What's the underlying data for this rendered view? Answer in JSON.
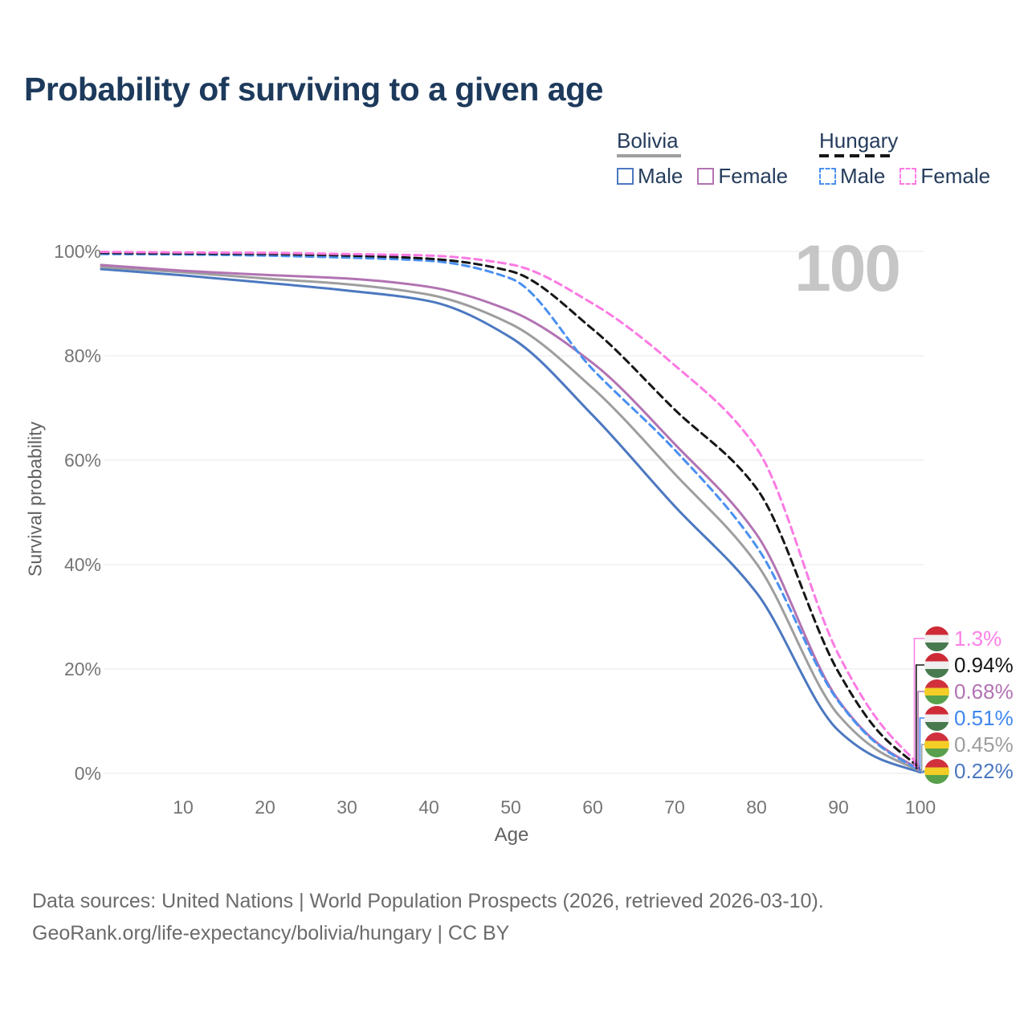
{
  "title": "Probability of surviving to a given age",
  "watermark": "100",
  "legend": {
    "groups": [
      {
        "label": "Bolivia",
        "line_style": "solid",
        "underline_color": "#9e9e9e",
        "items": [
          {
            "label": "Male",
            "color": "#4c78c0",
            "dashed": false
          },
          {
            "label": "Female",
            "color": "#b273b2",
            "dashed": false
          }
        ]
      },
      {
        "label": "Hungary",
        "line_style": "dashed",
        "underline_color": "#161616",
        "items": [
          {
            "label": "Male",
            "color": "#4a90f0",
            "dashed": true
          },
          {
            "label": "Female",
            "color": "#fb7ae3",
            "dashed": true
          }
        ]
      }
    ]
  },
  "end_labels": [
    {
      "value": "1.3%",
      "value_num": 1.3,
      "color": "#fd80e7",
      "flag": "hungary",
      "series": "Hungary Female"
    },
    {
      "value": "0.94%",
      "value_num": 0.94,
      "color": "#161616",
      "flag": "hungary",
      "series": "Hungary Combined"
    },
    {
      "value": "0.68%",
      "value_num": 0.68,
      "color": "#b273b2",
      "flag": "bolivia",
      "series": "Bolivia Female"
    },
    {
      "value": "0.51%",
      "value_num": 0.51,
      "color": "#3f86f0",
      "flag": "hungary",
      "series": "Hungary Male"
    },
    {
      "value": "0.45%",
      "value_num": 0.45,
      "color": "#9e9e9e",
      "flag": "bolivia",
      "series": "Bolivia Combined"
    },
    {
      "value": "0.22%",
      "value_num": 0.22,
      "color": "#4c78c0",
      "flag": "bolivia",
      "series": "Bolivia Male"
    }
  ],
  "flag_colors": {
    "hungary": [
      "#ce2b37",
      "#efefef",
      "#477a4e"
    ],
    "bolivia": [
      "#d0313d",
      "#f4ce27",
      "#58a04b"
    ]
  },
  "footer": {
    "line1": "Data sources: United Nations | World Population Prospects (2026, retrieved 2026-03-10).",
    "line2": "GeoRank.org/life-expectancy/bolivia/hungary | CC BY"
  },
  "chart_data": {
    "type": "line",
    "title": "Probability of surviving to a given age",
    "xlabel": "Age",
    "ylabel": "Survival probability",
    "xlim": [
      0,
      100
    ],
    "ylim": [
      0,
      100
    ],
    "grid": "horizontal",
    "gridline_color": "#e7e7e7",
    "yticks": [
      "0%",
      "20%",
      "40%",
      "60%",
      "80%",
      "100%"
    ],
    "xticks": [
      10,
      20,
      30,
      40,
      50,
      60,
      70,
      80,
      90,
      100
    ],
    "x": [
      0,
      10,
      20,
      30,
      40,
      50,
      60,
      70,
      80,
      90,
      95,
      100
    ],
    "series": [
      {
        "name": "Bolivia Male",
        "country": "Bolivia",
        "sex": "Male",
        "color": "#4c78c0",
        "dashed": false,
        "values": [
          96.6,
          95.4,
          94.0,
          92.5,
          90.5,
          83.5,
          68.6,
          51.2,
          34.6,
          8.2,
          2.8,
          0.22
        ]
      },
      {
        "name": "Bolivia Combined",
        "country": "Bolivia",
        "sex": "Both",
        "color": "#9e9e9e",
        "dashed": false,
        "values": [
          97.0,
          96.0,
          94.8,
          93.7,
          91.7,
          86.1,
          73.8,
          57.4,
          40.2,
          11.2,
          4.2,
          0.45
        ]
      },
      {
        "name": "Bolivia Female",
        "country": "Bolivia",
        "sex": "Female",
        "color": "#b273b2",
        "dashed": false,
        "values": [
          97.4,
          96.3,
          95.5,
          94.8,
          93.2,
          88.6,
          78.6,
          63.1,
          45.8,
          14.0,
          5.5,
          0.68
        ]
      },
      {
        "name": "Hungary Male",
        "country": "Hungary",
        "sex": "Male",
        "color": "#4a90f0",
        "dashed": true,
        "values": [
          99.5,
          99.4,
          99.2,
          98.8,
          98.2,
          94.8,
          77.4,
          62.0,
          43.5,
          13.8,
          5.3,
          0.51
        ]
      },
      {
        "name": "Hungary Combined",
        "country": "Hungary",
        "sex": "Both",
        "color": "#161616",
        "dashed": true,
        "values": [
          99.7,
          99.6,
          99.5,
          99.2,
          98.6,
          96.2,
          85.1,
          69.7,
          54.6,
          19.4,
          7.8,
          0.94
        ]
      },
      {
        "name": "Hungary Female",
        "country": "Hungary",
        "sex": "Female",
        "color": "#fb7ae3",
        "dashed": true,
        "values": [
          99.9,
          99.8,
          99.7,
          99.5,
          99.2,
          97.5,
          90.0,
          78.2,
          62.3,
          22.8,
          9.8,
          1.3
        ]
      }
    ]
  }
}
